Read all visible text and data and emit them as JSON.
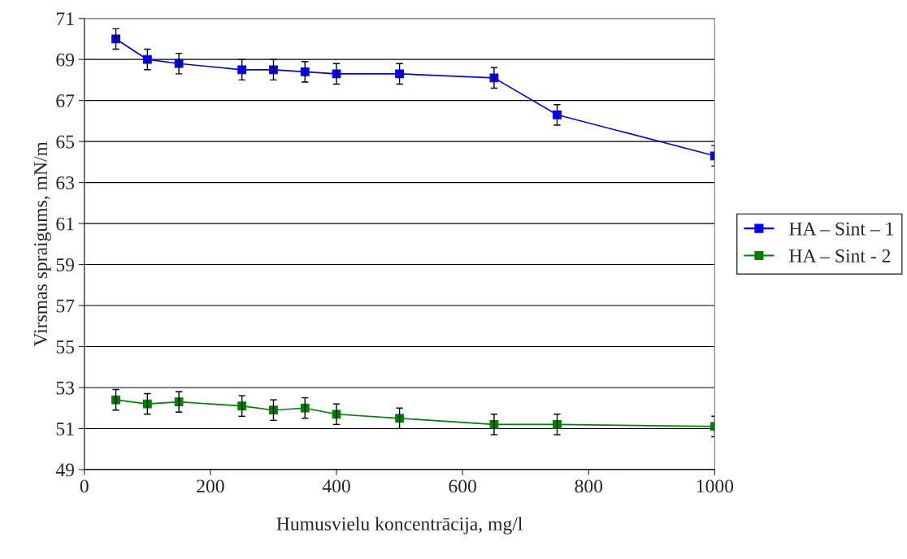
{
  "chart_data": {
    "type": "line",
    "xlabel": "Humusvielu koncentrācija, mg/l",
    "ylabel": "Virsmas spraigums, mN/m",
    "xlim": [
      0,
      1000
    ],
    "xticks": [
      0,
      200,
      400,
      600,
      800,
      1000
    ],
    "ylim": [
      49,
      71
    ],
    "yticks": [
      49,
      51,
      53,
      55,
      57,
      59,
      61,
      63,
      65,
      67,
      69,
      71
    ],
    "grid": "y",
    "legend": "right",
    "marker": "square",
    "line_style": "solid",
    "series": [
      {
        "name": "HA – Sint – 1",
        "color": "#0000ff",
        "x": [
          50,
          100,
          150,
          250,
          300,
          350,
          400,
          500,
          650,
          750,
          1000
        ],
        "values": [
          70.0,
          69.0,
          68.8,
          68.5,
          68.5,
          68.4,
          68.3,
          68.3,
          68.1,
          66.3,
          64.3
        ],
        "errors": [
          0.5,
          0.5,
          0.5,
          0.5,
          0.5,
          0.5,
          0.5,
          0.5,
          0.5,
          0.5,
          0.5
        ]
      },
      {
        "name": "HA – Sint - 2",
        "color": "#008000",
        "x": [
          50,
          100,
          150,
          250,
          300,
          350,
          400,
          500,
          650,
          750,
          1000
        ],
        "values": [
          52.4,
          52.2,
          52.3,
          52.1,
          51.9,
          52.0,
          51.7,
          51.5,
          51.2,
          51.2,
          51.1
        ],
        "errors": [
          0.5,
          0.5,
          0.5,
          0.5,
          0.5,
          0.5,
          0.5,
          0.5,
          0.5,
          0.5,
          0.5
        ]
      }
    ]
  }
}
